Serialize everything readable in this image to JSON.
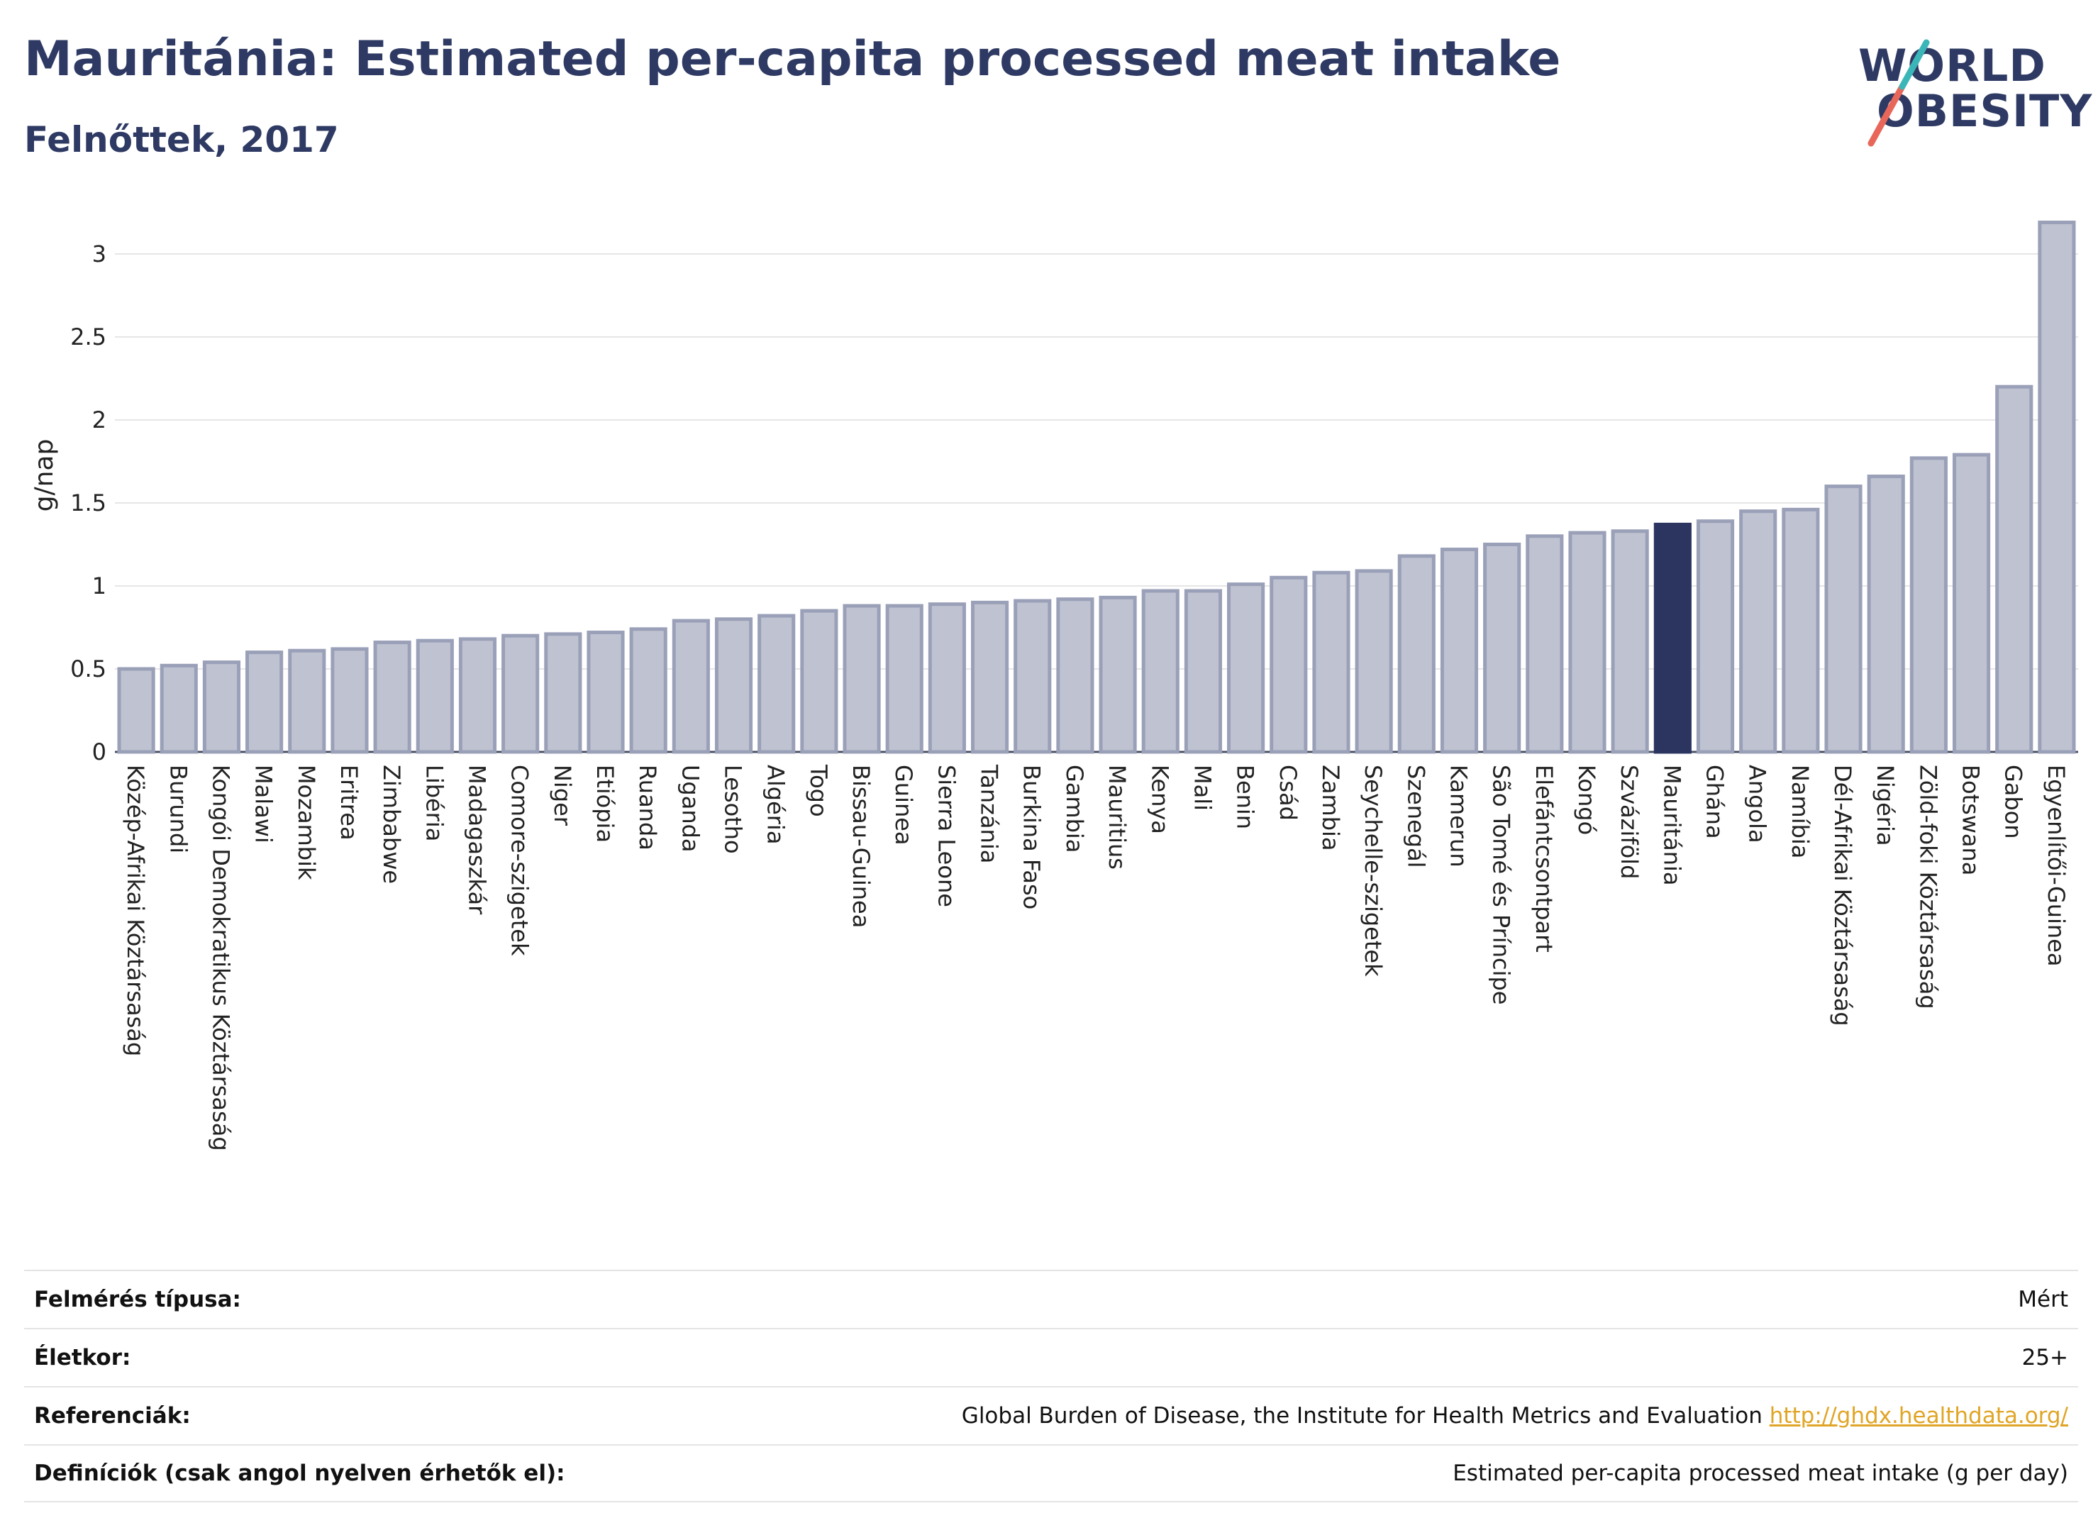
{
  "header": {
    "title": "Mauritánia: Estimated per-capita processed meat intake",
    "subtitle": "Felnőttek, 2017"
  },
  "logo": {
    "line1": "WORLD",
    "line2": "OBESITY"
  },
  "colors": {
    "bar": "#bfc3d1",
    "bar_edge": "#9aa0b8",
    "highlight": "#2c3560",
    "title": "#2e3a63",
    "link": "#e0a526",
    "logo_red": "#e8675a",
    "logo_teal": "#3bb6b8"
  },
  "chart_data": {
    "type": "bar",
    "ylabel": "g/nap",
    "ylim": [
      0,
      3.3
    ],
    "yticks": [
      0,
      0.5,
      1,
      1.5,
      2,
      2.5,
      3
    ],
    "ytick_labels": [
      "0",
      "0.5",
      "1",
      "1.5",
      "2",
      "2.5",
      "3"
    ],
    "grid": true,
    "highlight": "Mauritánia",
    "categories": [
      "Közép-Afrikai Köztársaság",
      "Burundi",
      "Kongói Demokratikus Köztársaság",
      "Malawi",
      "Mozambik",
      "Eritrea",
      "Zimbabwe",
      "Libéria",
      "Madagaszkár",
      "Comore-szigetek",
      "Niger",
      "Etiópia",
      "Ruanda",
      "Uganda",
      "Lesotho",
      "Algéria",
      "Togo",
      "Bissau-Guinea",
      "Guinea",
      "Sierra Leone",
      "Tanzánia",
      "Burkina Faso",
      "Gambia",
      "Mauritius",
      "Kenya",
      "Mali",
      "Benin",
      "Csád",
      "Zambia",
      "Seychelle-szigetek",
      "Szenegál",
      "Kamerun",
      "São Tomé és Príncipe",
      "Elefántcsontpart",
      "Kongó",
      "Szváziföld",
      "Mauritánia",
      "Ghána",
      "Angola",
      "Namíbia",
      "Dél-Afrikai Köztársaság",
      "Nigéria",
      "Zöld-foki Köztársaság",
      "Botswana",
      "Gabon",
      "Egyenlítői-Guinea"
    ],
    "values": [
      0.5,
      0.52,
      0.54,
      0.6,
      0.61,
      0.62,
      0.66,
      0.67,
      0.68,
      0.7,
      0.71,
      0.72,
      0.74,
      0.79,
      0.8,
      0.82,
      0.85,
      0.88,
      0.88,
      0.89,
      0.9,
      0.91,
      0.92,
      0.93,
      0.97,
      0.97,
      1.01,
      1.05,
      1.08,
      1.09,
      1.18,
      1.22,
      1.25,
      1.3,
      1.32,
      1.33,
      1.37,
      1.39,
      1.45,
      1.46,
      1.6,
      1.66,
      1.77,
      1.79,
      2.2,
      3.19
    ]
  },
  "info": {
    "rows": [
      {
        "label": "Felmérés típusa:",
        "value": "Mért"
      },
      {
        "label": "Életkor:",
        "value": "25+"
      },
      {
        "label": "Referenciák:",
        "value": "Global Burden of Disease, the Institute for Health Metrics and Evaluation",
        "link": "http://ghdx.healthdata.org/"
      },
      {
        "label": "Definíciók (csak angol nyelven érhetők el):",
        "value": "Estimated per-capita processed meat intake (g per day)"
      }
    ]
  }
}
